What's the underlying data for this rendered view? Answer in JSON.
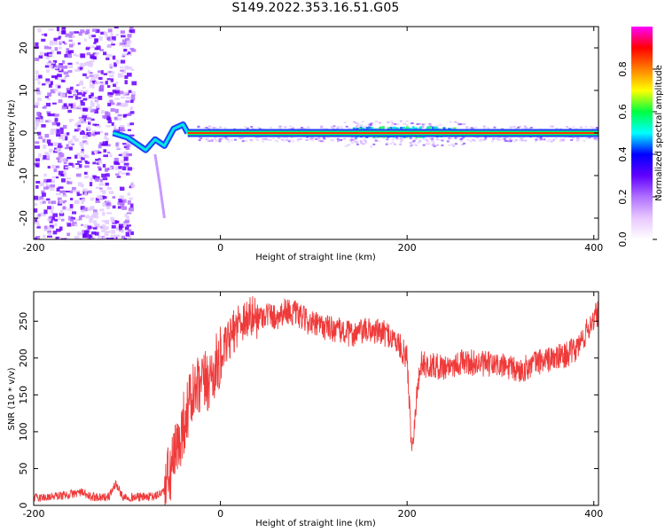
{
  "title": "S149.2022.353.16.51.G05",
  "chart_data": [
    {
      "type": "heatmap",
      "xlabel": "Height of straight line (km)",
      "ylabel": "Frequency (Hz)",
      "xlim": [
        -200,
        405
      ],
      "ylim": [
        -25,
        25
      ],
      "xticks": [
        -200,
        0,
        200,
        400
      ],
      "yticks": [
        20,
        10,
        0,
        -10,
        -20
      ],
      "colorbar": {
        "label": "Normalized spectral amplitude",
        "range": [
          0.0,
          1.0
        ],
        "ticks": [
          0.0,
          0.2,
          0.4,
          0.6,
          0.8
        ],
        "colors": [
          "#ffffff",
          "#e8c8ff",
          "#b070ff",
          "#6000ff",
          "#0000ff",
          "#00ffff",
          "#00ff40",
          "#ffff00",
          "#ff8000",
          "#ff0000",
          "#ff00ff"
        ]
      },
      "features": {
        "noise_region_x": [
          -200,
          -95
        ],
        "wavy_trace": [
          {
            "x": -115,
            "y": 0.0
          },
          {
            "x": -100,
            "y": -1.0
          },
          {
            "x": -90,
            "y": -2.5
          },
          {
            "x": -80,
            "y": -4.0
          },
          {
            "x": -70,
            "y": -1.5
          },
          {
            "x": -60,
            "y": -3.0
          },
          {
            "x": -50,
            "y": 1.0
          },
          {
            "x": -40,
            "y": 2.0
          },
          {
            "x": -35,
            "y": 0.0
          }
        ],
        "steady_line_x": [
          -35,
          405
        ],
        "steady_line_y": 0,
        "peak_band_x": [
          140,
          250
        ],
        "branch_trace": [
          {
            "x": -70,
            "y": -5.0
          },
          {
            "x": -65,
            "y": -12.0
          },
          {
            "x": -60,
            "y": -20.0
          }
        ]
      }
    },
    {
      "type": "line",
      "xlabel": "Height of straight line (km)",
      "ylabel": "SNR (10 * v/v)",
      "xlim": [
        -200,
        405
      ],
      "ylim": [
        0,
        290
      ],
      "xticks": [
        -200,
        0,
        200,
        400
      ],
      "yticks": [
        0,
        50,
        100,
        150,
        200,
        250
      ],
      "color": "#ef3a3a",
      "x": [
        -200,
        -180,
        -160,
        -150,
        -140,
        -120,
        -112,
        -105,
        -90,
        -70,
        -60,
        -50,
        -45,
        -40,
        -35,
        -30,
        -20,
        -10,
        0,
        10,
        20,
        30,
        40,
        50,
        60,
        70,
        80,
        100,
        120,
        140,
        160,
        180,
        190,
        200,
        205,
        210,
        215,
        220,
        240,
        260,
        280,
        300,
        320,
        340,
        360,
        380,
        390,
        400,
        405
      ],
      "values": [
        10,
        12,
        15,
        18,
        12,
        11,
        30,
        12,
        11,
        12,
        20,
        60,
        80,
        110,
        130,
        150,
        160,
        175,
        200,
        225,
        250,
        255,
        255,
        260,
        255,
        265,
        260,
        245,
        240,
        232,
        238,
        232,
        220,
        200,
        75,
        145,
        195,
        190,
        188,
        195,
        192,
        190,
        182,
        195,
        200,
        210,
        230,
        255,
        260
      ]
    }
  ]
}
